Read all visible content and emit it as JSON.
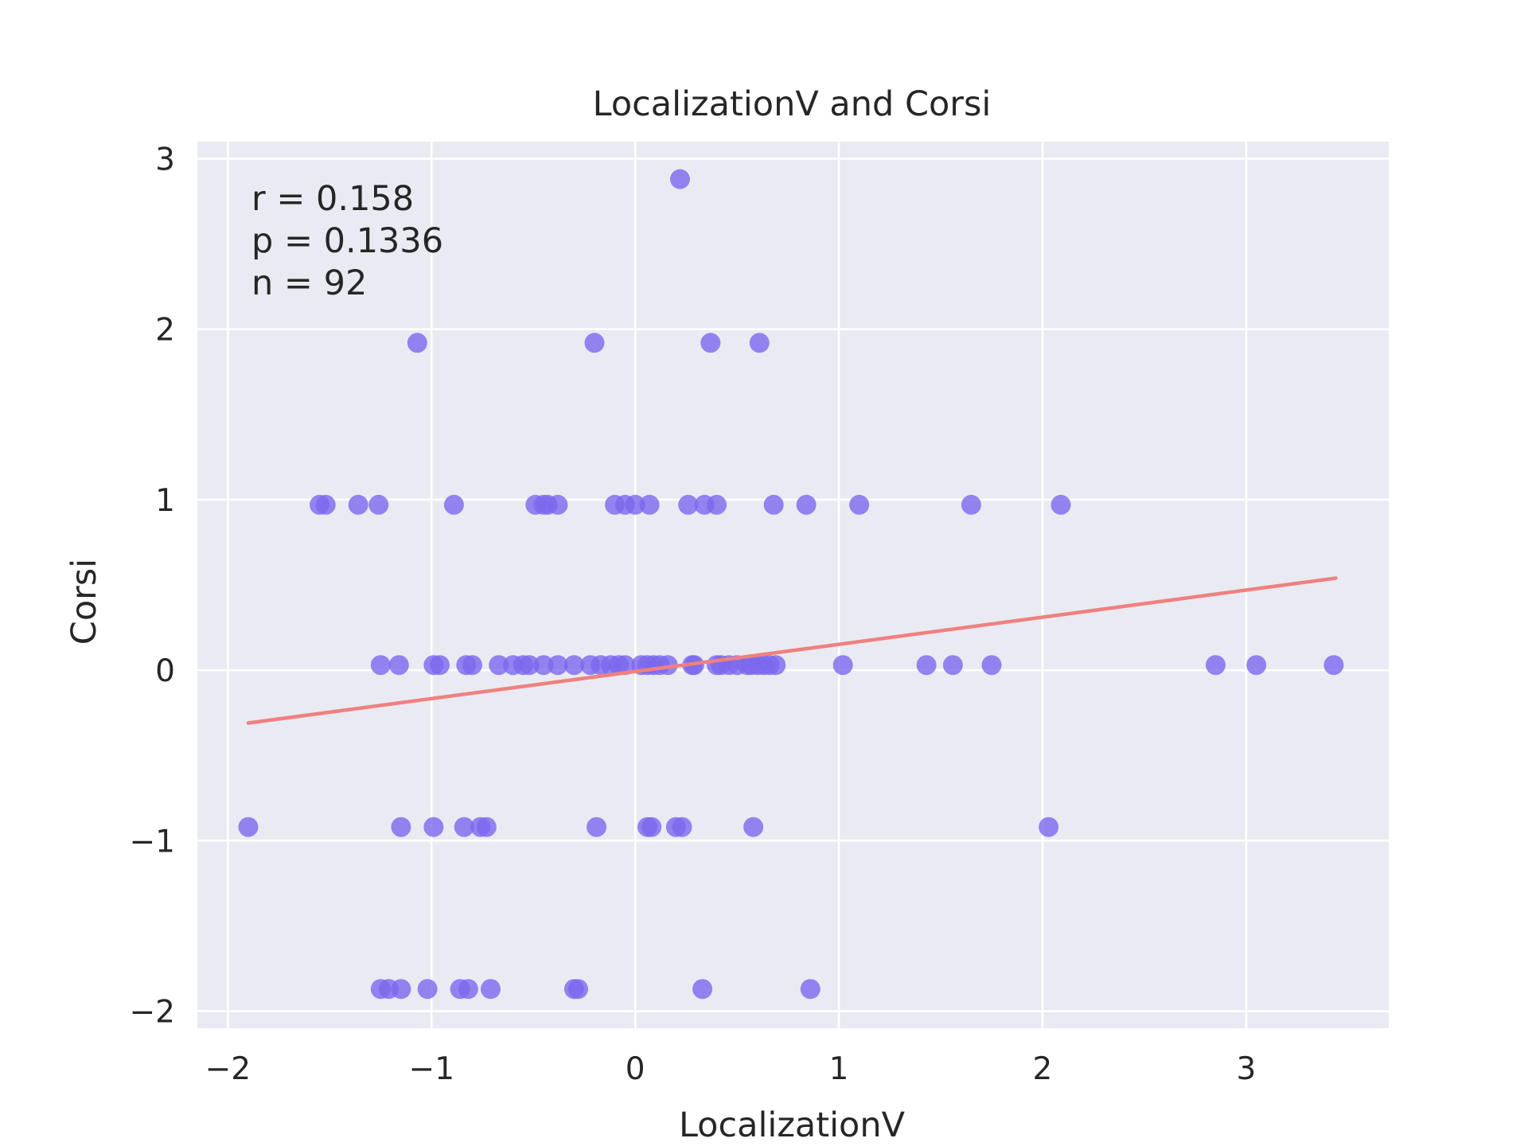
{
  "chart_data": {
    "type": "scatter",
    "title": "LocalizationV and Corsi",
    "xlabel": "LocalizationV",
    "ylabel": "Corsi",
    "xlim": [
      -2.15,
      3.7
    ],
    "ylim": [
      -2.1,
      3.1
    ],
    "xticks": [
      -2,
      -1,
      0,
      1,
      2,
      3
    ],
    "yticks": [
      -2,
      -1,
      0,
      1,
      2,
      3
    ],
    "xtick_labels": [
      "−2",
      "−1",
      "0",
      "1",
      "2",
      "3"
    ],
    "ytick_labels": [
      "−2",
      "−1",
      "0",
      "1",
      "2",
      "3"
    ],
    "grid": true,
    "background": "#eaeaf2",
    "point_color": "#7b68ee",
    "line_color": "#f08080",
    "annotations": [
      "r = 0.158",
      "p = 0.1336",
      "n = 92"
    ],
    "regression": {
      "x": [
        -1.9,
        3.44
      ],
      "y": [
        -0.31,
        0.54
      ]
    },
    "points": [
      {
        "x": 0.22,
        "y": 2.88
      },
      {
        "x": -1.07,
        "y": 1.92
      },
      {
        "x": -0.2,
        "y": 1.92
      },
      {
        "x": 0.37,
        "y": 1.92
      },
      {
        "x": 0.61,
        "y": 1.92
      },
      {
        "x": -1.55,
        "y": 0.97
      },
      {
        "x": -1.52,
        "y": 0.97
      },
      {
        "x": -1.36,
        "y": 0.97
      },
      {
        "x": -1.26,
        "y": 0.97
      },
      {
        "x": -0.89,
        "y": 0.97
      },
      {
        "x": -0.49,
        "y": 0.97
      },
      {
        "x": -0.45,
        "y": 0.97
      },
      {
        "x": -0.43,
        "y": 0.97
      },
      {
        "x": -0.38,
        "y": 0.97
      },
      {
        "x": -0.1,
        "y": 0.97
      },
      {
        "x": -0.05,
        "y": 0.97
      },
      {
        "x": 0.0,
        "y": 0.97
      },
      {
        "x": 0.07,
        "y": 0.97
      },
      {
        "x": 0.26,
        "y": 0.97
      },
      {
        "x": 0.34,
        "y": 0.97
      },
      {
        "x": 0.4,
        "y": 0.97
      },
      {
        "x": 0.68,
        "y": 0.97
      },
      {
        "x": 0.84,
        "y": 0.97
      },
      {
        "x": 1.1,
        "y": 0.97
      },
      {
        "x": 1.65,
        "y": 0.97
      },
      {
        "x": 2.09,
        "y": 0.97
      },
      {
        "x": -1.25,
        "y": 0.03
      },
      {
        "x": -1.16,
        "y": 0.03
      },
      {
        "x": -0.99,
        "y": 0.03
      },
      {
        "x": -0.96,
        "y": 0.03
      },
      {
        "x": -0.83,
        "y": 0.03
      },
      {
        "x": -0.8,
        "y": 0.03
      },
      {
        "x": -0.67,
        "y": 0.03
      },
      {
        "x": -0.6,
        "y": 0.03
      },
      {
        "x": -0.55,
        "y": 0.03
      },
      {
        "x": -0.52,
        "y": 0.03
      },
      {
        "x": -0.45,
        "y": 0.03
      },
      {
        "x": -0.38,
        "y": 0.03
      },
      {
        "x": -0.3,
        "y": 0.03
      },
      {
        "x": -0.22,
        "y": 0.03
      },
      {
        "x": -0.17,
        "y": 0.03
      },
      {
        "x": -0.12,
        "y": 0.03
      },
      {
        "x": -0.08,
        "y": 0.03
      },
      {
        "x": -0.05,
        "y": 0.03
      },
      {
        "x": 0.03,
        "y": 0.03
      },
      {
        "x": 0.06,
        "y": 0.03
      },
      {
        "x": 0.09,
        "y": 0.03
      },
      {
        "x": 0.12,
        "y": 0.03
      },
      {
        "x": 0.16,
        "y": 0.03
      },
      {
        "x": 0.28,
        "y": 0.03
      },
      {
        "x": 0.29,
        "y": 0.03
      },
      {
        "x": 0.4,
        "y": 0.03
      },
      {
        "x": 0.42,
        "y": 0.03
      },
      {
        "x": 0.46,
        "y": 0.03
      },
      {
        "x": 0.5,
        "y": 0.03
      },
      {
        "x": 0.55,
        "y": 0.03
      },
      {
        "x": 0.57,
        "y": 0.03
      },
      {
        "x": 0.6,
        "y": 0.03
      },
      {
        "x": 0.63,
        "y": 0.03
      },
      {
        "x": 0.66,
        "y": 0.03
      },
      {
        "x": 0.69,
        "y": 0.03
      },
      {
        "x": 1.02,
        "y": 0.03
      },
      {
        "x": 1.43,
        "y": 0.03
      },
      {
        "x": 1.56,
        "y": 0.03
      },
      {
        "x": 1.75,
        "y": 0.03
      },
      {
        "x": 2.85,
        "y": 0.03
      },
      {
        "x": 3.05,
        "y": 0.03
      },
      {
        "x": 3.43,
        "y": 0.03
      },
      {
        "x": -1.9,
        "y": -0.92
      },
      {
        "x": -1.15,
        "y": -0.92
      },
      {
        "x": -0.99,
        "y": -0.92
      },
      {
        "x": -0.84,
        "y": -0.92
      },
      {
        "x": -0.76,
        "y": -0.92
      },
      {
        "x": -0.73,
        "y": -0.92
      },
      {
        "x": -0.19,
        "y": -0.92
      },
      {
        "x": 0.06,
        "y": -0.92
      },
      {
        "x": 0.08,
        "y": -0.92
      },
      {
        "x": 0.2,
        "y": -0.92
      },
      {
        "x": 0.23,
        "y": -0.92
      },
      {
        "x": 0.58,
        "y": -0.92
      },
      {
        "x": 2.03,
        "y": -0.92
      },
      {
        "x": -1.25,
        "y": -1.87
      },
      {
        "x": -1.21,
        "y": -1.87
      },
      {
        "x": -1.15,
        "y": -1.87
      },
      {
        "x": -1.02,
        "y": -1.87
      },
      {
        "x": -0.86,
        "y": -1.87
      },
      {
        "x": -0.82,
        "y": -1.87
      },
      {
        "x": -0.71,
        "y": -1.87
      },
      {
        "x": -0.3,
        "y": -1.87
      },
      {
        "x": -0.28,
        "y": -1.87
      },
      {
        "x": 0.33,
        "y": -1.87
      },
      {
        "x": 0.86,
        "y": -1.87
      }
    ]
  }
}
